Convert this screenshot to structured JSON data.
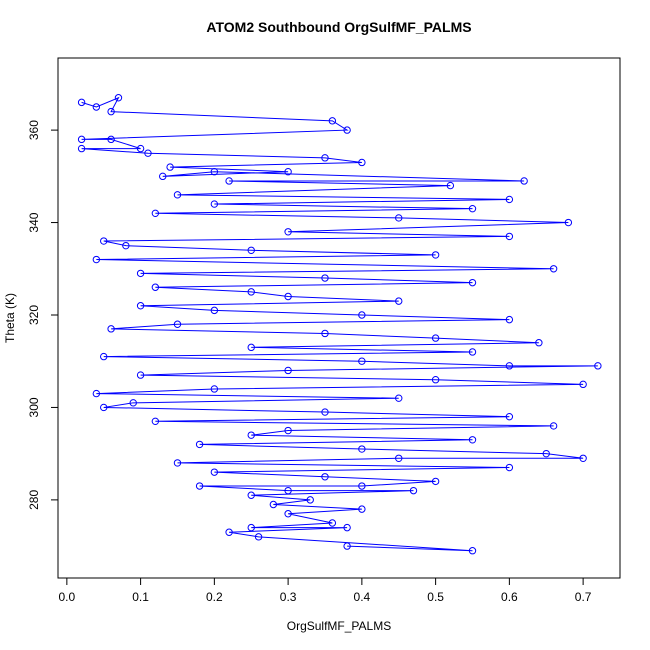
{
  "chart_data": {
    "type": "line",
    "title": "ATOM2 Southbound OrgSulfMF_PALMS",
    "x_label": "OrgSulfMF_PALMS",
    "y_label": "Theta (K)",
    "xlim": [
      -0.012,
      0.75
    ],
    "ylim": [
      263.1,
      375.6
    ],
    "xticks": [
      {
        "value": 0,
        "label": "0.0"
      },
      0.1,
      0.2,
      0.3,
      0.4,
      0.5,
      0.6,
      0.7
    ],
    "yticks": [
      280,
      300,
      320,
      340,
      360
    ],
    "series": [
      {
        "color": "#0000ff",
        "x": [
          0.02,
          0.04,
          0.07,
          0.06,
          0.36,
          0.38,
          0.02,
          0.06,
          0.1,
          0.02,
          0.11,
          0.35,
          0.4,
          0.14,
          0.3,
          0.13,
          0.2,
          0.62,
          0.22,
          0.52,
          0.15,
          0.6,
          0.2,
          0.55,
          0.12,
          0.45,
          0.68,
          0.3,
          0.6,
          0.05,
          0.08,
          0.25,
          0.5,
          0.04,
          0.66,
          0.1,
          0.35,
          0.55,
          0.12,
          0.25,
          0.3,
          0.45,
          0.1,
          0.2,
          0.4,
          0.6,
          0.15,
          0.06,
          0.35,
          0.5,
          0.64,
          0.25,
          0.55,
          0.05,
          0.4,
          0.6,
          0.72,
          0.3,
          0.1,
          0.5,
          0.7,
          0.2,
          0.04,
          0.45,
          0.09,
          0.05,
          0.35,
          0.6,
          0.12,
          0.66,
          0.3,
          0.25,
          0.55,
          0.18,
          0.4,
          0.65,
          0.7,
          0.45,
          0.15,
          0.6,
          0.2,
          0.35,
          0.5,
          0.4,
          0.18,
          0.3,
          0.47,
          0.25,
          0.33,
          0.28,
          0.4,
          0.3,
          0.36,
          0.25,
          0.38,
          0.22,
          0.26,
          0.55,
          0.38
        ],
        "values": [
          366,
          365,
          367,
          364,
          362,
          360,
          358,
          358,
          356,
          356,
          355,
          354,
          353,
          352,
          351,
          350,
          351,
          349,
          349,
          348,
          346,
          345,
          344,
          343,
          342,
          341,
          340,
          338,
          337,
          336,
          335,
          334,
          333,
          332,
          330,
          329,
          328,
          327,
          326,
          325,
          324,
          323,
          322,
          321,
          320,
          319,
          318,
          317,
          316,
          315,
          314,
          313,
          312,
          311,
          310,
          309,
          309,
          308,
          307,
          306,
          305,
          304,
          303,
          302,
          301,
          300,
          299,
          298,
          297,
          296,
          295,
          294,
          293,
          292,
          291,
          290,
          289,
          289,
          288,
          287,
          286,
          285,
          284,
          283,
          283,
          282,
          282,
          281,
          280,
          279,
          278,
          277,
          275,
          274,
          274,
          273,
          272,
          269,
          270
        ]
      }
    ]
  }
}
